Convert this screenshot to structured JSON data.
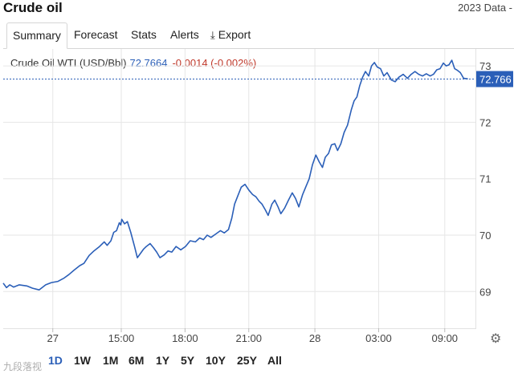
{
  "header": {
    "title": "Crude oil",
    "right_text": "2023 Data - "
  },
  "tabs": [
    {
      "label": "Summary",
      "active": true
    },
    {
      "label": "Forecast"
    },
    {
      "label": "Stats"
    },
    {
      "label": "Alerts"
    },
    {
      "label": "Export",
      "icon": "download-icon"
    }
  ],
  "legend": {
    "name": "Crude Oil WTI (USD/Bbl)",
    "price": "72.7664",
    "change": "-0.0014 (-0.002%)"
  },
  "ranges": [
    {
      "label": "1D",
      "active": true
    },
    {
      "label": "1W"
    },
    {
      "label": "1M"
    },
    {
      "label": "6M"
    },
    {
      "label": "1Y"
    },
    {
      "label": "5Y"
    },
    {
      "label": "10Y"
    },
    {
      "label": "25Y"
    },
    {
      "label": "All"
    }
  ],
  "colors": {
    "line": "#2b5fb8",
    "label_bg": "#2b5fb8",
    "negative": "#c0392b",
    "grid": "#e6e6e6"
  },
  "icons": {
    "settings": "gear-icon",
    "export": "download-icon"
  },
  "watermark": "九段落视",
  "chart_data": {
    "type": "line",
    "title": "Crude Oil WTI (USD/Bbl)",
    "y_ticks": [
      69,
      70,
      71,
      72,
      73
    ],
    "ylim": [
      68.35,
      73.3
    ],
    "x_ticks": [
      {
        "label": "27",
        "x": 0.105
      },
      {
        "label": "15:00",
        "x": 0.25
      },
      {
        "label": "18:00",
        "x": 0.385
      },
      {
        "label": "21:00",
        "x": 0.52
      },
      {
        "label": "28",
        "x": 0.66
      },
      {
        "label": "03:00",
        "x": 0.795
      },
      {
        "label": "09:00",
        "x": 0.935
      }
    ],
    "current_value_label": "72.766",
    "current_value": 72.7664,
    "series": [
      {
        "values": [
          [
            0.0,
            69.15
          ],
          [
            0.007,
            69.07
          ],
          [
            0.014,
            69.12
          ],
          [
            0.022,
            69.08
          ],
          [
            0.034,
            69.12
          ],
          [
            0.05,
            69.1
          ],
          [
            0.062,
            69.06
          ],
          [
            0.076,
            69.03
          ],
          [
            0.09,
            69.12
          ],
          [
            0.102,
            69.16
          ],
          [
            0.116,
            69.18
          ],
          [
            0.129,
            69.24
          ],
          [
            0.139,
            69.3
          ],
          [
            0.15,
            69.38
          ],
          [
            0.162,
            69.46
          ],
          [
            0.171,
            69.5
          ],
          [
            0.182,
            69.64
          ],
          [
            0.192,
            69.72
          ],
          [
            0.204,
            69.8
          ],
          [
            0.214,
            69.88
          ],
          [
            0.22,
            69.82
          ],
          [
            0.228,
            69.9
          ],
          [
            0.234,
            70.05
          ],
          [
            0.24,
            70.08
          ],
          [
            0.246,
            70.22
          ],
          [
            0.249,
            70.18
          ],
          [
            0.251,
            70.28
          ],
          [
            0.257,
            70.2
          ],
          [
            0.263,
            70.24
          ],
          [
            0.27,
            70.05
          ],
          [
            0.278,
            69.8
          ],
          [
            0.284,
            69.6
          ],
          [
            0.291,
            69.68
          ],
          [
            0.297,
            69.75
          ],
          [
            0.303,
            69.8
          ],
          [
            0.311,
            69.85
          ],
          [
            0.318,
            69.78
          ],
          [
            0.325,
            69.7
          ],
          [
            0.332,
            69.6
          ],
          [
            0.341,
            69.65
          ],
          [
            0.349,
            69.72
          ],
          [
            0.357,
            69.7
          ],
          [
            0.366,
            69.8
          ],
          [
            0.376,
            69.74
          ],
          [
            0.386,
            69.8
          ],
          [
            0.396,
            69.9
          ],
          [
            0.407,
            69.88
          ],
          [
            0.416,
            69.95
          ],
          [
            0.424,
            69.92
          ],
          [
            0.432,
            70.0
          ],
          [
            0.44,
            69.96
          ],
          [
            0.45,
            70.02
          ],
          [
            0.46,
            70.08
          ],
          [
            0.468,
            70.04
          ],
          [
            0.477,
            70.1
          ],
          [
            0.484,
            70.3
          ],
          [
            0.49,
            70.55
          ],
          [
            0.497,
            70.7
          ],
          [
            0.504,
            70.85
          ],
          [
            0.512,
            70.9
          ],
          [
            0.52,
            70.8
          ],
          [
            0.528,
            70.72
          ],
          [
            0.535,
            70.68
          ],
          [
            0.542,
            70.6
          ],
          [
            0.548,
            70.55
          ],
          [
            0.555,
            70.45
          ],
          [
            0.561,
            70.35
          ],
          [
            0.569,
            70.55
          ],
          [
            0.575,
            70.62
          ],
          [
            0.582,
            70.5
          ],
          [
            0.588,
            70.38
          ],
          [
            0.596,
            70.48
          ],
          [
            0.604,
            70.62
          ],
          [
            0.612,
            70.75
          ],
          [
            0.619,
            70.65
          ],
          [
            0.626,
            70.5
          ],
          [
            0.634,
            70.72
          ],
          [
            0.642,
            70.88
          ],
          [
            0.648,
            71.0
          ],
          [
            0.655,
            71.25
          ],
          [
            0.662,
            71.42
          ],
          [
            0.669,
            71.3
          ],
          [
            0.676,
            71.2
          ],
          [
            0.682,
            71.38
          ],
          [
            0.689,
            71.45
          ],
          [
            0.695,
            71.6
          ],
          [
            0.702,
            71.62
          ],
          [
            0.708,
            71.5
          ],
          [
            0.715,
            71.62
          ],
          [
            0.722,
            71.82
          ],
          [
            0.729,
            71.95
          ],
          [
            0.737,
            72.22
          ],
          [
            0.743,
            72.38
          ],
          [
            0.749,
            72.45
          ],
          [
            0.755,
            72.65
          ],
          [
            0.761,
            72.8
          ],
          [
            0.767,
            72.9
          ],
          [
            0.774,
            72.82
          ],
          [
            0.78,
            73.0
          ],
          [
            0.786,
            73.06
          ],
          [
            0.792,
            72.98
          ],
          [
            0.799,
            72.95
          ],
          [
            0.806,
            72.82
          ],
          [
            0.813,
            72.88
          ],
          [
            0.822,
            72.75
          ],
          [
            0.83,
            72.72
          ],
          [
            0.838,
            72.8
          ],
          [
            0.847,
            72.85
          ],
          [
            0.856,
            72.78
          ],
          [
            0.864,
            72.85
          ],
          [
            0.872,
            72.9
          ],
          [
            0.88,
            72.85
          ],
          [
            0.888,
            72.82
          ],
          [
            0.896,
            72.86
          ],
          [
            0.904,
            72.82
          ],
          [
            0.911,
            72.85
          ],
          [
            0.918,
            72.93
          ],
          [
            0.925,
            72.95
          ],
          [
            0.932,
            73.05
          ],
          [
            0.938,
            73.0
          ],
          [
            0.944,
            73.02
          ],
          [
            0.95,
            73.1
          ],
          [
            0.956,
            72.95
          ],
          [
            0.962,
            72.92
          ],
          [
            0.968,
            72.88
          ],
          [
            0.975,
            72.78
          ],
          [
            0.984,
            72.77
          ]
        ]
      }
    ]
  }
}
